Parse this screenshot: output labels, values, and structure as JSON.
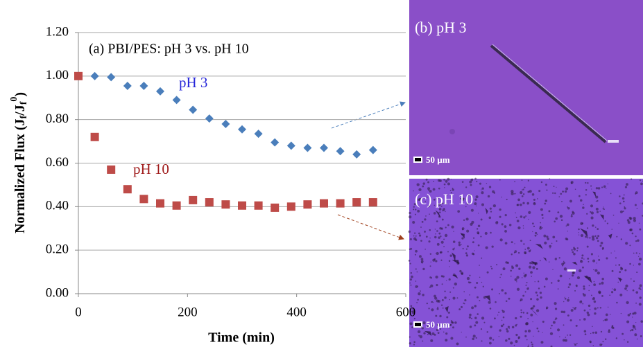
{
  "chart_data": {
    "type": "scatter",
    "annotation": "(a) PBI/PES: pH 3 vs. pH 10",
    "xlabel": "Time (min)",
    "ylabel": [
      "Normalized Flux (J",
      "f",
      "/J",
      "f",
      "0",
      ")"
    ],
    "x": [
      0,
      30,
      60,
      90,
      120,
      150,
      180,
      210,
      240,
      270,
      300,
      330,
      360,
      390,
      420,
      450,
      480,
      510,
      540
    ],
    "series": [
      {
        "name": "pH 3",
        "color": "#4a7ebb",
        "label_color": "#2424d8",
        "marker": "diamond",
        "values": [
          1.0,
          1.0,
          0.995,
          0.955,
          0.955,
          0.93,
          0.89,
          0.845,
          0.805,
          0.78,
          0.755,
          0.735,
          0.695,
          0.68,
          0.67,
          0.67,
          0.655,
          0.64,
          0.66
        ]
      },
      {
        "name": "pH 10",
        "color": "#be4b48",
        "label_color": "#a01c1c",
        "marker": "square",
        "values": [
          1.0,
          0.72,
          0.57,
          0.48,
          0.435,
          0.415,
          0.405,
          0.43,
          0.42,
          0.41,
          0.405,
          0.405,
          0.395,
          0.4,
          0.41,
          0.415,
          0.415,
          0.42,
          0.42
        ]
      }
    ],
    "xlim": [
      0,
      600
    ],
    "xticks": [
      0,
      200,
      400,
      600
    ],
    "ylim": [
      0,
      1.2
    ],
    "yticks": [
      {
        "value": 0,
        "label": "0.00"
      },
      {
        "value": 0.2,
        "label": "0.20"
      },
      {
        "value": 0.4,
        "label": "0.40"
      },
      {
        "value": 0.6,
        "label": "0.60"
      },
      {
        "value": 0.8,
        "label": "0.80"
      },
      {
        "value": 1.0,
        "label": "1.00"
      },
      {
        "value": 1.2,
        "label": "1.20"
      }
    ],
    "grid": true
  },
  "panels": [
    {
      "label": "(b) pH 3",
      "scale": "50 µm"
    },
    {
      "label": "(c) pH 10",
      "scale": "50 µm"
    }
  ]
}
